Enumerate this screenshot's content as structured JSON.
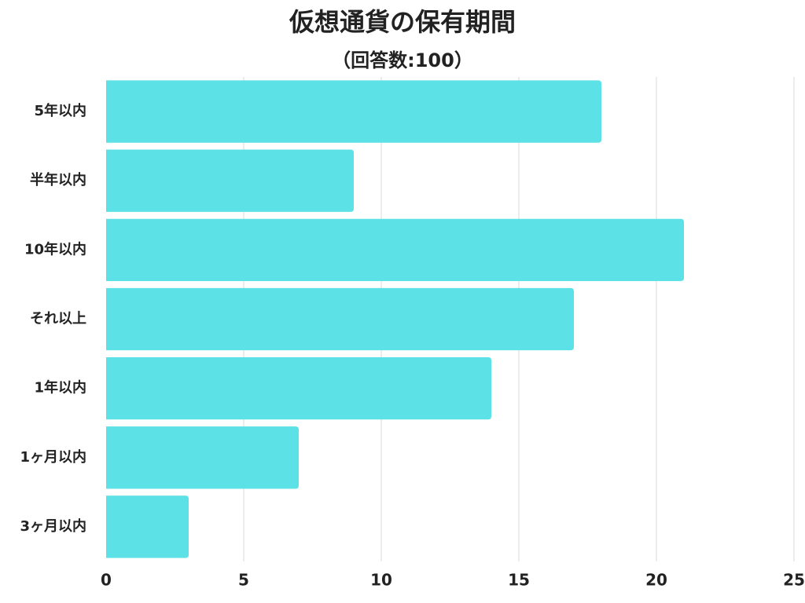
{
  "chart_data": {
    "type": "bar",
    "orientation": "horizontal",
    "title": "仮想通貨の保有期間",
    "subtitle": "（回答数:100）",
    "categories": [
      "5年以内",
      "半年以内",
      "10年以内",
      "それ以上",
      "1年以内",
      "1ヶ月以内",
      "3ヶ月以内"
    ],
    "values": [
      18,
      9,
      21,
      17,
      14,
      7,
      3
    ],
    "color": "#5ce1e6",
    "xlim": [
      0,
      25
    ],
    "xticks": [
      0,
      5,
      10,
      15,
      20,
      25
    ],
    "grid": true
  }
}
